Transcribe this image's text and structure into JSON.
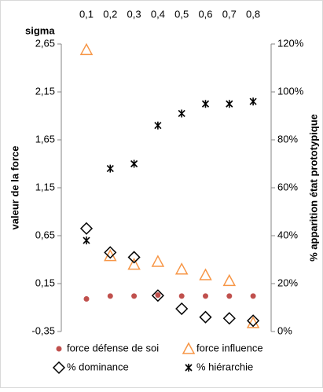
{
  "chart_data": {
    "type": "scatter",
    "x_label": "sigma",
    "y_label": "valeur de la force",
    "y2_label": "% apparition état prototypique",
    "categories": [
      "0,1",
      "0,2",
      "0,3",
      "0,4",
      "0,5",
      "0,6",
      "0,7",
      "0,8"
    ],
    "ylim": [
      -0.35,
      2.65
    ],
    "yticks": [
      {
        "value": -0.35,
        "label": "-0,35"
      },
      {
        "value": 0.15,
        "label": "0,15"
      },
      {
        "value": 0.65,
        "label": "0,65"
      },
      {
        "value": 1.15,
        "label": "1,15"
      },
      {
        "value": 1.65,
        "label": "1,65"
      },
      {
        "value": 2.15,
        "label": "2,15"
      },
      {
        "value": 2.65,
        "label": "2,65"
      }
    ],
    "y2lim": [
      0,
      120
    ],
    "y2ticks": [
      {
        "value": 0,
        "label": "0%"
      },
      {
        "value": 20,
        "label": "20%"
      },
      {
        "value": 40,
        "label": "40%"
      },
      {
        "value": 60,
        "label": "60%"
      },
      {
        "value": 80,
        "label": "80%"
      },
      {
        "value": 100,
        "label": "100%"
      },
      {
        "value": 120,
        "label": "120%"
      }
    ],
    "series": [
      {
        "name": "force défense de soi",
        "color": "#c0504d",
        "marker": "circle",
        "values": [
          -0.01,
          0.02,
          0.02,
          0.03,
          0.02,
          0.02,
          0.02,
          0.02
        ]
      },
      {
        "name": "force influence",
        "color": "#f79646",
        "marker": "triangle",
        "values": [
          2.59,
          0.44,
          0.35,
          0.38,
          0.3,
          0.24,
          0.18,
          -0.26
        ]
      },
      {
        "name": "% dominance",
        "color": "#000000",
        "marker": "diamond",
        "axis": "y2",
        "values": [
          43,
          33,
          31,
          15,
          9.5,
          6,
          5.5,
          4.5
        ]
      },
      {
        "name": "% hiérarchie",
        "color": "#000000",
        "marker": "star",
        "axis": "y2",
        "values": [
          38,
          68,
          70,
          86,
          91,
          95,
          95,
          96
        ]
      }
    ]
  }
}
